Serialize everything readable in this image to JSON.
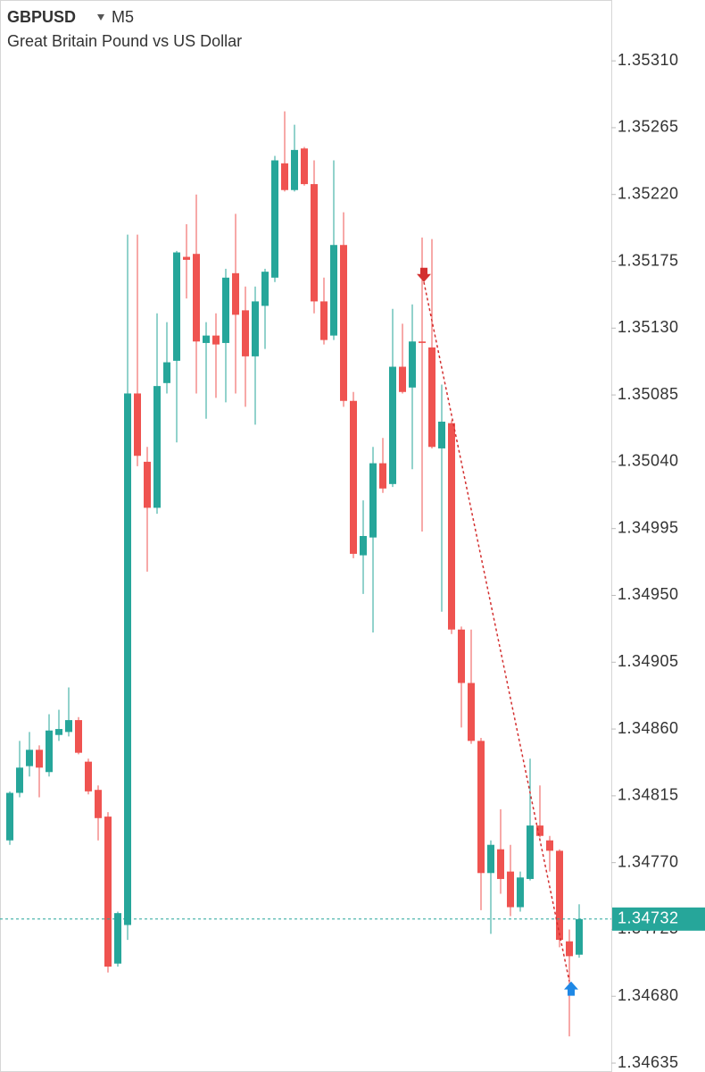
{
  "chart_data": {
    "type": "candlestick",
    "title": "GBPUSD",
    "timeframe": "M5",
    "subtitle": "Great Britain Pound vs US Dollar",
    "open": [
      1.34785,
      1.34817,
      1.34835,
      1.34846,
      1.34831,
      1.34856,
      1.34858,
      1.34866,
      1.34838,
      1.34819,
      1.34801,
      1.34702,
      1.34728,
      1.35086,
      1.3504,
      1.35009,
      1.35093,
      1.35108,
      1.35178,
      1.3518,
      1.3512,
      1.35125,
      1.3512,
      1.35167,
      1.35142,
      1.35111,
      1.35145,
      1.35164,
      1.35241,
      1.35223,
      1.35251,
      1.35227,
      1.35148,
      1.35125,
      1.35186,
      1.35081,
      1.34977,
      1.34989,
      1.35039,
      1.35025,
      1.35104,
      1.3509,
      1.35121,
      1.35117,
      1.35049,
      1.35066,
      1.34927,
      1.34891,
      1.34852,
      1.34763,
      1.34779,
      1.34764,
      1.3474,
      1.34759,
      1.34795,
      1.34785,
      1.34778,
      1.34717,
      1.34708
    ],
    "high": [
      1.34818,
      1.34852,
      1.34858,
      1.34849,
      1.3487,
      1.34873,
      1.34888,
      1.34868,
      1.3484,
      1.34822,
      1.34804,
      1.34737,
      1.35193,
      1.35193,
      1.3505,
      1.3514,
      1.35134,
      1.35182,
      1.352,
      1.3522,
      1.35134,
      1.3514,
      1.3517,
      1.35207,
      1.35158,
      1.35158,
      1.3517,
      1.35246,
      1.35276,
      1.35267,
      1.35252,
      1.35243,
      1.35164,
      1.35243,
      1.35208,
      1.35087,
      1.35014,
      1.3505,
      1.35056,
      1.35143,
      1.35133,
      1.35146,
      1.35191,
      1.3519,
      1.35092,
      1.35068,
      1.34929,
      1.34927,
      1.34854,
      1.34785,
      1.34806,
      1.34782,
      1.34764,
      1.3484,
      1.34822,
      1.34788,
      1.34779,
      1.34725,
      1.34742
    ],
    "low": [
      1.34782,
      1.34814,
      1.34828,
      1.34814,
      1.34828,
      1.34852,
      1.34855,
      1.34843,
      1.34816,
      1.34785,
      1.34696,
      1.347,
      1.34718,
      1.35037,
      1.34966,
      1.35005,
      1.35086,
      1.35053,
      1.3515,
      1.35086,
      1.35069,
      1.35083,
      1.3508,
      1.35086,
      1.35077,
      1.35065,
      1.35116,
      1.35161,
      1.35222,
      1.35222,
      1.35226,
      1.3514,
      1.35119,
      1.35122,
      1.35077,
      1.34975,
      1.34951,
      1.34925,
      1.35019,
      1.35023,
      1.35086,
      1.35035,
      1.34993,
      1.35049,
      1.34939,
      1.34924,
      1.34861,
      1.3485,
      1.34738,
      1.34722,
      1.34749,
      1.34734,
      1.34737,
      1.34758,
      1.34787,
      1.34764,
      1.34713,
      1.34653,
      1.34706
    ],
    "close": [
      1.34817,
      1.34834,
      1.34846,
      1.34834,
      1.34859,
      1.3486,
      1.34866,
      1.34844,
      1.34818,
      1.348,
      1.347,
      1.34736,
      1.35086,
      1.35044,
      1.35009,
      1.35091,
      1.35107,
      1.35181,
      1.35176,
      1.35121,
      1.35125,
      1.35119,
      1.35164,
      1.35139,
      1.35111,
      1.35148,
      1.35168,
      1.35243,
      1.35223,
      1.3525,
      1.35227,
      1.35148,
      1.35122,
      1.35186,
      1.35081,
      1.34978,
      1.3499,
      1.35039,
      1.35022,
      1.35104,
      1.35087,
      1.35121,
      1.3512,
      1.3505,
      1.35067,
      1.34927,
      1.34891,
      1.34852,
      1.34763,
      1.34782,
      1.34759,
      1.3474,
      1.3476,
      1.34795,
      1.34788,
      1.34778,
      1.34718,
      1.34707,
      1.34732
    ],
    "up_color": "#26a69a",
    "down_color": "#ef5350",
    "ylim": [
      1.34629,
      1.35351
    ],
    "yticks": [
      {
        "value": 1.3531,
        "label": "1.35310"
      },
      1.35265,
      {
        "value": 1.3522,
        "label": "1.35220"
      },
      1.35175,
      {
        "value": 1.3513,
        "label": "1.35130"
      },
      1.35085,
      {
        "value": 1.3504,
        "label": "1.35040"
      },
      1.34995,
      {
        "value": 1.3495,
        "label": "1.34950"
      },
      1.34905,
      {
        "value": 1.3486,
        "label": "1.34860"
      },
      1.34815,
      {
        "value": 1.3477,
        "label": "1.34770"
      },
      1.34725,
      {
        "value": 1.3468,
        "label": "1.34680"
      },
      1.34635
    ],
    "last_price": 1.34732,
    "trade": {
      "entry": 1.35161,
      "exit": 1.3469
    }
  }
}
